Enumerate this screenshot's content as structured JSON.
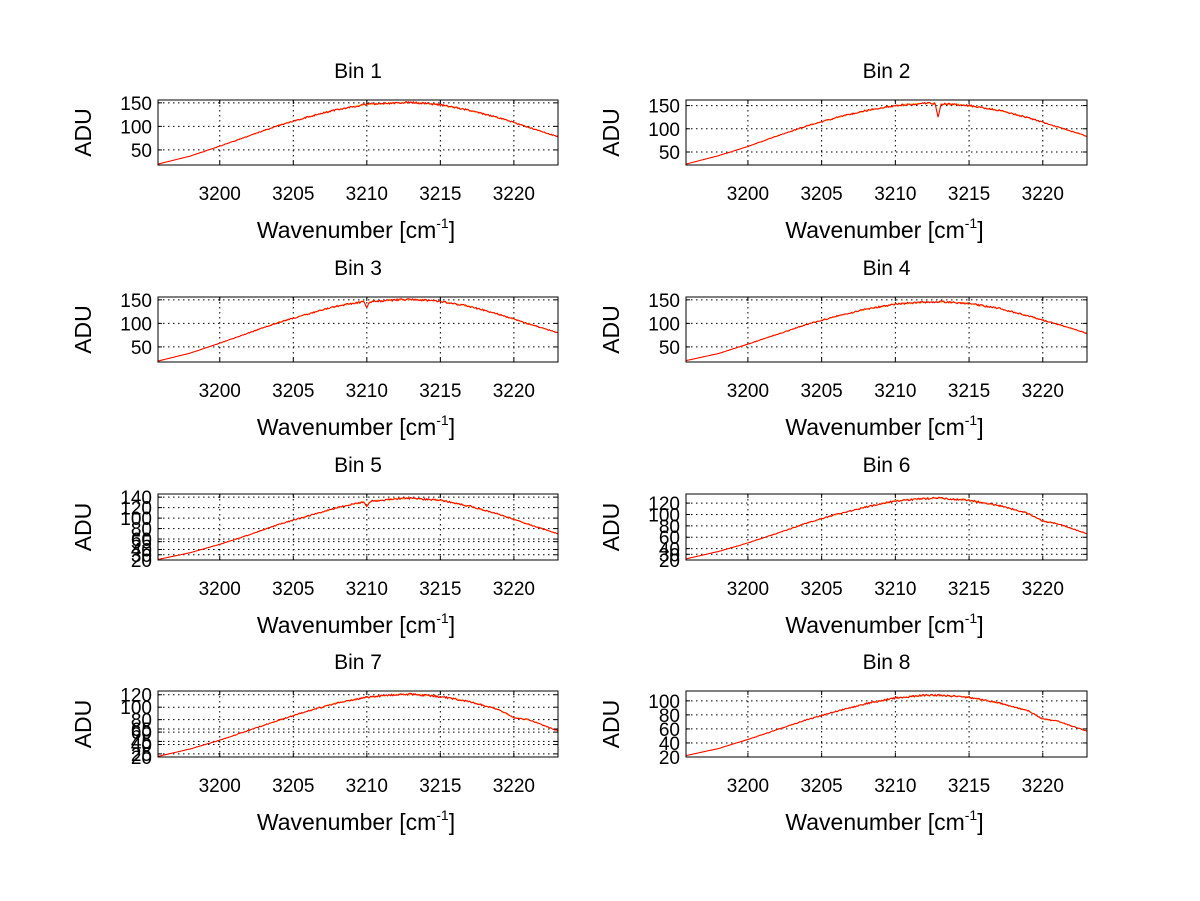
{
  "colors": {
    "axis": "#000000",
    "grid": "#000000",
    "series_main": "#ff0000",
    "series_under": "#ffaa00",
    "background": "#ffffff"
  },
  "chart_data": [
    {
      "type": "line",
      "title": "Bin 1",
      "xlabel": "Wavenumber [cm",
      "xlabel_sup": "-1",
      "xlabel_close": "]",
      "ylabel": "ADU",
      "xlim": [
        3195.8,
        3223.0
      ],
      "ylim": [
        18,
        156
      ],
      "xticks": [
        3200,
        3205,
        3210,
        3215,
        3220
      ],
      "xtick_labels": [
        "3200",
        "3205",
        "3210",
        "3215",
        "3220"
      ],
      "yticks": [
        50,
        100,
        150
      ],
      "ytick_labels": [
        "50",
        "100",
        "150"
      ],
      "grid": true,
      "x": [
        3195.8,
        3198,
        3200,
        3202,
        3204,
        3206,
        3208,
        3210,
        3212,
        3213,
        3215,
        3217,
        3219,
        3221,
        3223
      ],
      "values": [
        20,
        37,
        58,
        80,
        102,
        120,
        136,
        147,
        150,
        151,
        146,
        134,
        118,
        98,
        78
      ]
    },
    {
      "type": "line",
      "title": "Bin 2",
      "xlabel": "Wavenumber [cm",
      "xlabel_sup": "-1",
      "xlabel_close": "]",
      "ylabel": "ADU",
      "xlim": [
        3195.8,
        3223.0
      ],
      "ylim": [
        22,
        162
      ],
      "xticks": [
        3200,
        3205,
        3210,
        3215,
        3220
      ],
      "xtick_labels": [
        "3200",
        "3205",
        "3210",
        "3215",
        "3220"
      ],
      "yticks": [
        50,
        100,
        150
      ],
      "ytick_labels": [
        "50",
        "100",
        "150"
      ],
      "grid": true,
      "x": [
        3195.8,
        3198,
        3200,
        3202,
        3204,
        3206,
        3208,
        3210,
        3212,
        3212.7,
        3212.9,
        3213.1,
        3215,
        3217,
        3219,
        3221,
        3223
      ],
      "values": [
        24,
        42,
        62,
        85,
        106,
        124,
        139,
        150,
        155,
        154,
        125,
        154,
        150,
        140,
        124,
        104,
        84
      ]
    },
    {
      "type": "line",
      "title": "Bin 3",
      "xlabel": "Wavenumber [cm",
      "xlabel_sup": "-1",
      "xlabel_close": "]",
      "ylabel": "ADU",
      "xlim": [
        3195.8,
        3223.0
      ],
      "ylim": [
        18,
        156
      ],
      "xticks": [
        3200,
        3205,
        3210,
        3215,
        3220
      ],
      "xtick_labels": [
        "3200",
        "3205",
        "3210",
        "3215",
        "3220"
      ],
      "yticks": [
        50,
        100,
        150
      ],
      "ytick_labels": [
        "50",
        "100",
        "150"
      ],
      "grid": true,
      "x": [
        3195.8,
        3198,
        3200,
        3202,
        3204,
        3206,
        3208,
        3209.8,
        3210,
        3210.2,
        3212,
        3213,
        3215,
        3217,
        3219,
        3221,
        3223
      ],
      "values": [
        20,
        37,
        58,
        80,
        102,
        120,
        137,
        146,
        135,
        146,
        150,
        151,
        147,
        136,
        119,
        99,
        80
      ]
    },
    {
      "type": "line",
      "title": "Bin 4",
      "xlabel": "Wavenumber [cm",
      "xlabel_sup": "-1",
      "xlabel_close": "]",
      "ylabel": "ADU",
      "xlim": [
        3195.8,
        3223.0
      ],
      "ylim": [
        18,
        156
      ],
      "xticks": [
        3200,
        3205,
        3210,
        3215,
        3220
      ],
      "xtick_labels": [
        "3200",
        "3205",
        "3210",
        "3215",
        "3220"
      ],
      "yticks": [
        50,
        100,
        150
      ],
      "ytick_labels": [
        "50",
        "100",
        "150"
      ],
      "grid": true,
      "x": [
        3195.8,
        3198,
        3200,
        3202,
        3204,
        3206,
        3208,
        3210,
        3212,
        3213,
        3215,
        3217,
        3219,
        3221,
        3223
      ],
      "values": [
        21,
        36,
        56,
        77,
        98,
        115,
        130,
        141,
        145,
        146,
        142,
        132,
        116,
        98,
        79
      ]
    },
    {
      "type": "line",
      "title": "Bin 5",
      "xlabel": "Wavenumber [cm",
      "xlabel_sup": "-1",
      "xlabel_close": "]",
      "ylabel": "ADU",
      "xlim": [
        3195.8,
        3223.0
      ],
      "ylim": [
        20,
        146
      ],
      "xticks": [
        3200,
        3205,
        3210,
        3215,
        3220
      ],
      "xtick_labels": [
        "3200",
        "3205",
        "3210",
        "3215",
        "3220"
      ],
      "yticks": [
        20,
        30,
        40,
        55,
        60,
        80,
        100,
        120,
        140
      ],
      "ytick_labels": [
        "20",
        "30",
        "40",
        "55",
        "60",
        "80",
        "100",
        "120",
        "140"
      ],
      "grid": true,
      "x": [
        3195.8,
        3198,
        3200,
        3202,
        3204,
        3206,
        3208,
        3209.8,
        3210,
        3210.2,
        3212,
        3213,
        3215,
        3217,
        3219,
        3221,
        3223
      ],
      "values": [
        21,
        34,
        50,
        68,
        88,
        104,
        120,
        131,
        122,
        132,
        137,
        138,
        134,
        123,
        107,
        88,
        70
      ]
    },
    {
      "type": "line",
      "title": "Bin 6",
      "xlabel": "Wavenumber [cm",
      "xlabel_sup": "-1",
      "xlabel_close": "]",
      "ylabel": "ADU",
      "xlim": [
        3195.8,
        3223.0
      ],
      "ylim": [
        20,
        136
      ],
      "xticks": [
        3200,
        3205,
        3210,
        3215,
        3220
      ],
      "xtick_labels": [
        "3200",
        "3205",
        "3210",
        "3215",
        "3220"
      ],
      "yticks": [
        20,
        30,
        40,
        60,
        80,
        100,
        120
      ],
      "ytick_labels": [
        "20",
        "30",
        "40",
        "60",
        "80",
        "100",
        "120"
      ],
      "grid": true,
      "x": [
        3195.8,
        3198,
        3200,
        3202,
        3204,
        3206,
        3208,
        3210,
        3212,
        3213,
        3215,
        3217,
        3219,
        3220,
        3221,
        3223
      ],
      "values": [
        22,
        35,
        50,
        67,
        85,
        100,
        113,
        124,
        128,
        129,
        125,
        116,
        102,
        88,
        84,
        66
      ]
    },
    {
      "type": "line",
      "title": "Bin 7",
      "xlabel": "Wavenumber [cm",
      "xlabel_sup": "-1",
      "xlabel_close": "]",
      "ylabel": "ADU",
      "xlim": [
        3195.8,
        3223.0
      ],
      "ylim": [
        20,
        126
      ],
      "xticks": [
        3200,
        3205,
        3210,
        3215,
        3220
      ],
      "xtick_labels": [
        "3200",
        "3205",
        "3210",
        "3215",
        "3220"
      ],
      "yticks": [
        20,
        25,
        40,
        45,
        60,
        65,
        80,
        100,
        120
      ],
      "ytick_labels": [
        "20",
        "25",
        "40",
        "45",
        "60",
        "65",
        "80",
        "100",
        "120"
      ],
      "grid": true,
      "x": [
        3195.8,
        3198,
        3200,
        3202,
        3204,
        3206,
        3208,
        3210,
        3212,
        3213,
        3215,
        3217,
        3219,
        3220,
        3221,
        3223
      ],
      "values": [
        21,
        33,
        47,
        63,
        79,
        94,
        107,
        116,
        120,
        121,
        117,
        109,
        96,
        83,
        80,
        62
      ]
    },
    {
      "type": "line",
      "title": "Bin 8",
      "xlabel": "Wavenumber [cm",
      "xlabel_sup": "-1",
      "xlabel_close": "]",
      "ylabel": "ADU",
      "xlim": [
        3195.8,
        3223.0
      ],
      "ylim": [
        20,
        114
      ],
      "xticks": [
        3200,
        3205,
        3210,
        3215,
        3220
      ],
      "xtick_labels": [
        "3200",
        "3205",
        "3210",
        "3215",
        "3220"
      ],
      "yticks": [
        20,
        40,
        60,
        80,
        100
      ],
      "ytick_labels": [
        "20",
        "40",
        "60",
        "80",
        "100"
      ],
      "grid": true,
      "x": [
        3195.8,
        3198,
        3200,
        3202,
        3204,
        3206,
        3208,
        3210,
        3212,
        3213,
        3215,
        3217,
        3219,
        3220,
        3221,
        3223
      ],
      "values": [
        22,
        32,
        45,
        59,
        73,
        85,
        96,
        104,
        108,
        108,
        105,
        97,
        86,
        74,
        71,
        57
      ]
    }
  ]
}
